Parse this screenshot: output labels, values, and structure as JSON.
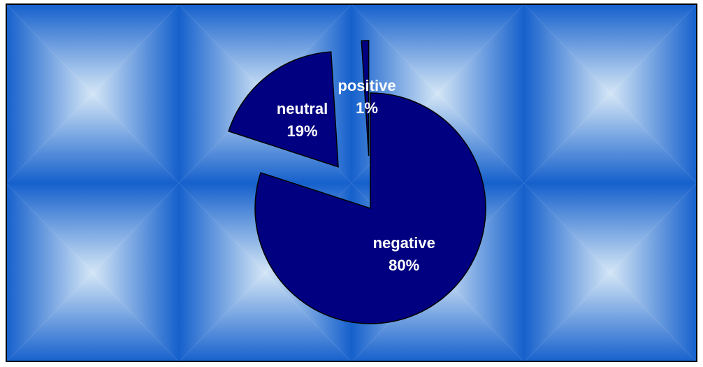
{
  "chart_data": {
    "type": "pie",
    "categories": [
      "negative",
      "neutral",
      "positive"
    ],
    "values": [
      80,
      19,
      1
    ],
    "value_labels": [
      "80%",
      "19%",
      "1%"
    ],
    "color": "#000080"
  }
}
